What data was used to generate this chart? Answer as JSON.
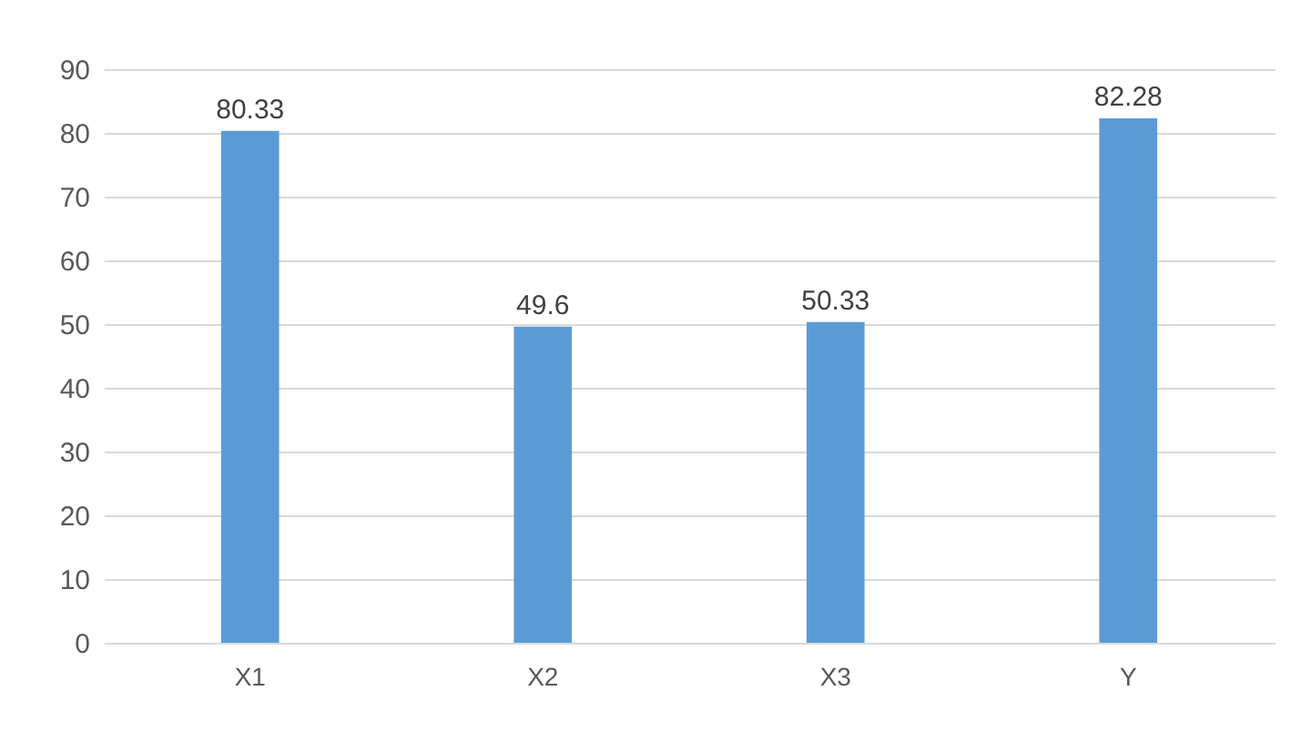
{
  "chart_data": {
    "type": "bar",
    "categories": [
      "X1",
      "X2",
      "X3",
      "Y"
    ],
    "values": [
      80.33,
      49.6,
      50.33,
      82.28
    ],
    "color": "#5b9bd5",
    "ylim": [
      0,
      90
    ],
    "yticks": [
      0,
      10,
      20,
      30,
      40,
      50,
      60,
      70,
      80,
      90
    ],
    "grid": "y",
    "data_labels": true
  }
}
